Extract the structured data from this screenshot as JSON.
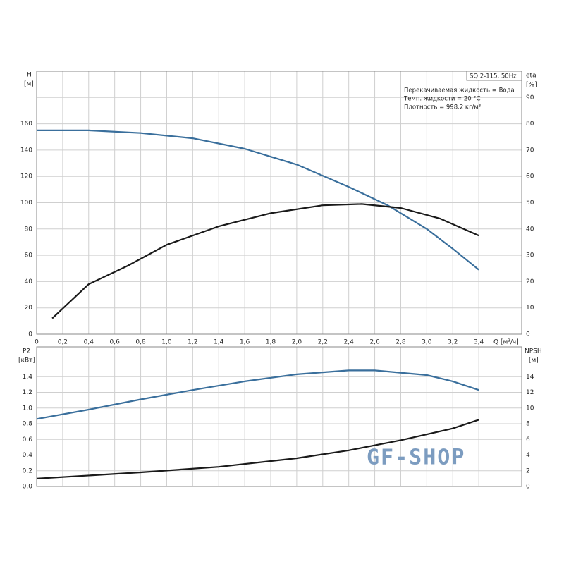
{
  "chart_data": [
    {
      "type": "line",
      "y_label": "H",
      "y_unit": "[м]",
      "y2_label": "eta",
      "y2_unit": "[%]",
      "x_label": "Q [м³/ч]",
      "pump": "SQ 2-115, 50Hz",
      "notes": [
        "Перекачиваемая жидкость = Вода",
        "Темп. жидкости = 20 °C",
        "Плотность = 998.2 кг/м³"
      ],
      "xlim": [
        0,
        3.73
      ],
      "ylim": [
        0,
        200
      ],
      "y2lim": [
        0,
        100
      ],
      "xticks": [
        0,
        {
          "value": 0.2,
          "label": "0,2"
        },
        {
          "value": 0.4,
          "label": "0,4"
        },
        {
          "value": 0.6,
          "label": "0,6"
        },
        {
          "value": 0.8,
          "label": "0,8"
        },
        {
          "value": 1.0,
          "label": "1,0"
        },
        {
          "value": 1.2,
          "label": "1,2"
        },
        {
          "value": 1.4,
          "label": "1,4"
        },
        {
          "value": 1.6,
          "label": "1,6"
        },
        {
          "value": 1.8,
          "label": "1,8"
        },
        {
          "value": 2.0,
          "label": "2,0"
        },
        {
          "value": 2.2,
          "label": "2,2"
        },
        {
          "value": 2.4,
          "label": "2,4"
        },
        {
          "value": 2.6,
          "label": "2,6"
        },
        {
          "value": 2.8,
          "label": "2,8"
        },
        {
          "value": 3.0,
          "label": "3,0"
        },
        {
          "value": 3.2,
          "label": "3,2"
        },
        {
          "value": 3.4,
          "label": "3,4"
        }
      ],
      "yticks": [
        0,
        20,
        40,
        60,
        80,
        100,
        120,
        140,
        160
      ],
      "y2ticks": [
        0,
        10,
        20,
        30,
        40,
        50,
        60,
        70,
        80,
        90
      ],
      "series": [
        {
          "color": "#3a6f9c",
          "x": [
            0,
            0.4,
            0.8,
            1.2,
            1.6,
            2.0,
            2.4,
            2.7,
            3.0,
            3.2,
            3.4
          ],
          "values": [
            155,
            155,
            153,
            149,
            141,
            129,
            112,
            98,
            80,
            65,
            49
          ]
        },
        {
          "color": "#1a1a1a",
          "axis": "y2",
          "x": [
            0.12,
            0.4,
            0.7,
            1.0,
            1.4,
            1.8,
            2.2,
            2.5,
            2.8,
            3.1,
            3.4
          ],
          "values": [
            6,
            19,
            26,
            34,
            41,
            46,
            49,
            49.5,
            48,
            44,
            37.5
          ]
        }
      ]
    },
    {
      "type": "line",
      "y_label": "P2",
      "y_unit": "[кВт]",
      "y2_label": "NPSH",
      "y2_unit": "[м]",
      "xlim": [
        0,
        3.73
      ],
      "ylim": [
        0,
        1.78
      ],
      "y2lim": [
        0,
        17.8
      ],
      "xticks": [
        0,
        0.2,
        0.4,
        0.6,
        0.8,
        1.0,
        1.2,
        1.4,
        1.6,
        1.8,
        2.0,
        2.2,
        2.4,
        2.6,
        2.8,
        3.0,
        3.2,
        3.4
      ],
      "yticks": [
        {
          "value": 0,
          "label": "0.0"
        },
        0.2,
        0.4,
        0.6,
        0.8,
        {
          "value": 1,
          "label": "1.0"
        },
        1.2,
        1.4
      ],
      "y2ticks": [
        0,
        2,
        4,
        6,
        8,
        10,
        12,
        14
      ],
      "series": [
        {
          "color": "#3a6f9c",
          "x": [
            0,
            0.4,
            0.8,
            1.2,
            1.6,
            2.0,
            2.4,
            2.6,
            3.0,
            3.2,
            3.4
          ],
          "values": [
            0.86,
            0.98,
            1.11,
            1.23,
            1.34,
            1.43,
            1.48,
            1.48,
            1.42,
            1.34,
            1.23
          ]
        },
        {
          "color": "#1a1a1a",
          "axis": "y2",
          "x": [
            0,
            0.8,
            1.4,
            2.0,
            2.4,
            2.8,
            3.2,
            3.4
          ],
          "values": [
            1.0,
            1.8,
            2.5,
            3.6,
            4.6,
            5.9,
            7.4,
            8.5
          ]
        }
      ]
    }
  ],
  "watermark": "GF-SHOP"
}
